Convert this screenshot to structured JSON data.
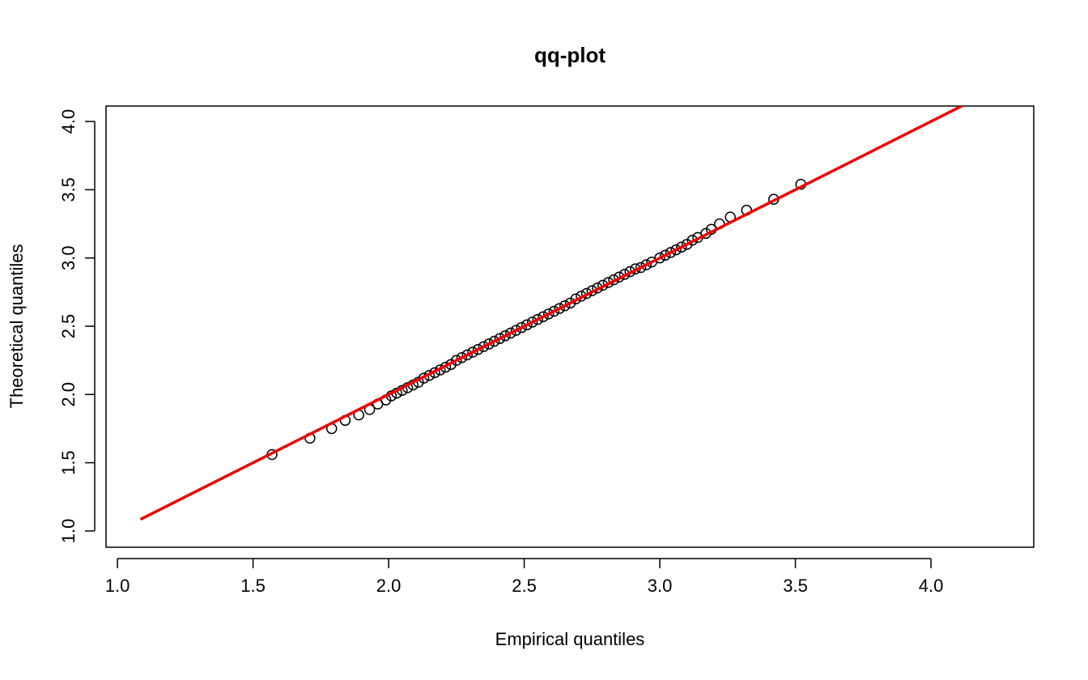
{
  "chart_data": {
    "type": "scatter",
    "title": "qq-plot",
    "x_label": "Empirical quantiles",
    "y_label": "Theoretical quantiles",
    "xlim": [
      0.958,
      4.379
    ],
    "ylim": [
      0.881,
      4.113
    ],
    "xticks": [
      {
        "value": 1,
        "label": "1.0"
      },
      {
        "value": 1.5,
        "label": "1.5"
      },
      {
        "value": 2,
        "label": "2.0"
      },
      {
        "value": 2.5,
        "label": "2.5"
      },
      {
        "value": 3,
        "label": "3.0"
      },
      {
        "value": 3.5,
        "label": "3.5"
      },
      {
        "value": 4,
        "label": "4.0"
      }
    ],
    "yticks": [
      {
        "value": 1,
        "label": "1.0"
      },
      {
        "value": 1.5,
        "label": "1.5"
      },
      {
        "value": 2,
        "label": "2.0"
      },
      {
        "value": 2.5,
        "label": "2.5"
      },
      {
        "value": 3,
        "label": "3.0"
      },
      {
        "value": 3.5,
        "label": "3.5"
      },
      {
        "value": 4,
        "label": "4.0"
      }
    ],
    "series": [
      {
        "type": "points",
        "color": "#000000",
        "x": [
          1.57,
          1.71,
          1.79,
          1.84,
          1.89,
          1.93,
          1.96,
          1.99,
          2.01,
          2.03,
          2.05,
          2.07,
          2.09,
          2.11,
          2.13,
          2.15,
          2.17,
          2.19,
          2.21,
          2.23,
          2.25,
          2.27,
          2.29,
          2.31,
          2.33,
          2.35,
          2.37,
          2.39,
          2.41,
          2.43,
          2.45,
          2.47,
          2.49,
          2.51,
          2.53,
          2.55,
          2.57,
          2.59,
          2.61,
          2.63,
          2.65,
          2.67,
          2.69,
          2.71,
          2.73,
          2.75,
          2.77,
          2.79,
          2.81,
          2.83,
          2.85,
          2.87,
          2.89,
          2.91,
          2.93,
          2.95,
          2.97,
          3.0,
          3.02,
          3.04,
          3.06,
          3.08,
          3.1,
          3.12,
          3.14,
          3.17,
          3.19,
          3.22,
          3.26,
          3.32,
          3.42,
          3.52
        ],
        "values": [
          1.56,
          1.68,
          1.75,
          1.81,
          1.85,
          1.89,
          1.93,
          1.96,
          1.99,
          2.01,
          2.03,
          2.05,
          2.07,
          2.09,
          2.12,
          2.14,
          2.16,
          2.18,
          2.2,
          2.22,
          2.25,
          2.27,
          2.29,
          2.31,
          2.33,
          2.35,
          2.37,
          2.39,
          2.41,
          2.43,
          2.45,
          2.47,
          2.49,
          2.51,
          2.53,
          2.55,
          2.57,
          2.59,
          2.61,
          2.63,
          2.65,
          2.67,
          2.7,
          2.72,
          2.74,
          2.76,
          2.78,
          2.8,
          2.82,
          2.84,
          2.86,
          2.88,
          2.9,
          2.92,
          2.93,
          2.95,
          2.97,
          3.0,
          3.02,
          3.04,
          3.06,
          3.08,
          3.1,
          3.13,
          3.15,
          3.18,
          3.21,
          3.25,
          3.3,
          3.35,
          3.43,
          3.54
        ]
      },
      {
        "type": "line",
        "color": "#ee0000",
        "x": [
          1.085,
          4.12
        ],
        "values": [
          1.085,
          4.12
        ]
      }
    ]
  }
}
